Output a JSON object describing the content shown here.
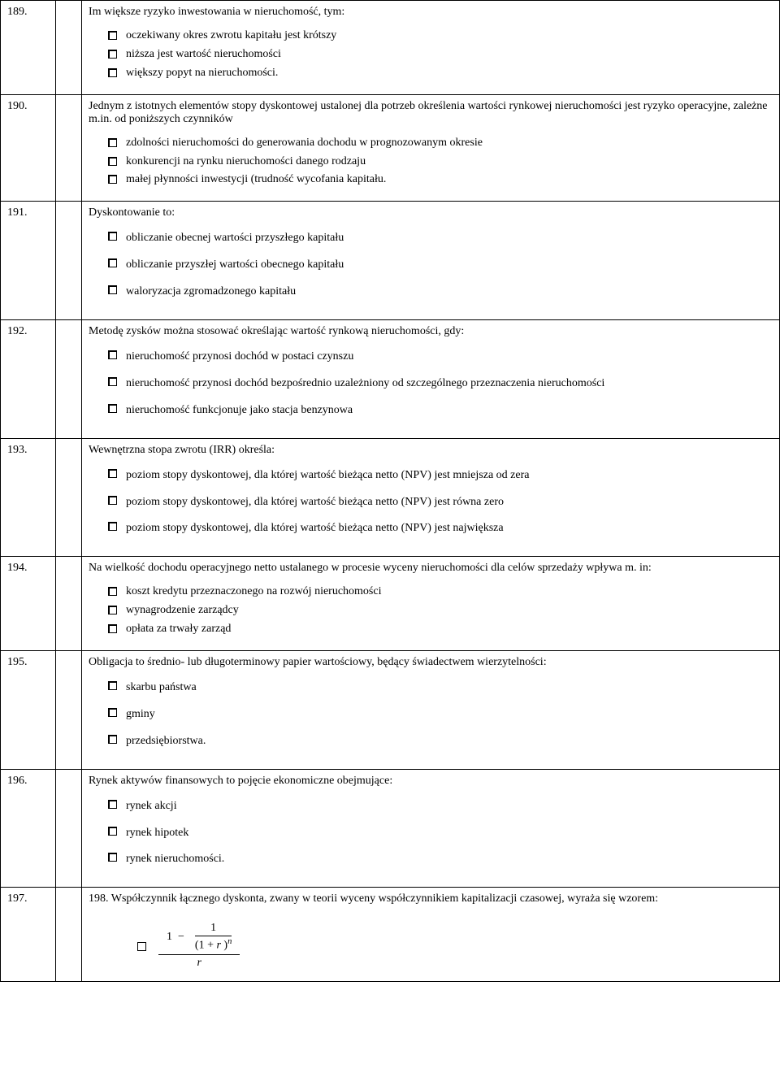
{
  "rows": [
    {
      "num": "189.",
      "text": "Im większe ryzyko inwestowania w nieruchomość, tym:",
      "opts": [
        "oczekiwany okres zwrotu kapitału jest krótszy",
        "niższa jest wartość nieruchomości",
        "większy popyt na nieruchomości."
      ],
      "spaced": false
    },
    {
      "num": "190.",
      "text": "Jednym z istotnych elementów stopy dyskontowej ustalonej dla potrzeb określenia wartości rynkowej nieruchomości jest ryzyko operacyjne, zależne m.in. od poniższych czynników",
      "opts": [
        "zdolności nieruchomości do generowania dochodu w prognozowanym okresie",
        "konkurencji na rynku nieruchomości danego rodzaju",
        "małej płynności inwestycji (trudność wycofania kapitału."
      ],
      "spaced": false
    },
    {
      "num": "191.",
      "text": "Dyskontowanie to:",
      "opts": [
        "obliczanie obecnej wartości przyszłego kapitału",
        "obliczanie przyszłej wartości obecnego kapitału",
        "waloryzacja zgromadzonego kapitału"
      ],
      "spaced": true
    },
    {
      "num": "192.",
      "text": "Metodę zysków można stosować określając wartość rynkową nieruchomości, gdy:",
      "opts": [
        "nieruchomość przynosi dochód w postaci czynszu",
        "nieruchomość przynosi dochód bezpośrednio uzależniony od szczególnego przeznaczenia nieruchomości",
        "nieruchomość funkcjonuje jako stacja benzynowa"
      ],
      "spaced": true
    },
    {
      "num": "193.",
      "text": "Wewnętrzna stopa zwrotu (IRR) określa:",
      "opts": [
        "poziom stopy dyskontowej, dla której wartość bieżąca netto (NPV) jest mniejsza od zera",
        "poziom stopy dyskontowej, dla której wartość bieżąca netto (NPV) jest równa zero",
        "poziom stopy dyskontowej, dla której wartość bieżąca netto (NPV) jest największa"
      ],
      "spaced": true
    },
    {
      "num": "194.",
      "text": "Na wielkość dochodu operacyjnego netto ustalanego w procesie wyceny nieruchomości dla celów sprzedaży wpływa m. in:",
      "opts": [
        "koszt kredytu przeznaczonego na rozwój nieruchomości",
        "wynagrodzenie zarządcy",
        "opłata za trwały zarząd"
      ],
      "spaced": false
    },
    {
      "num": "195.",
      "text": "Obligacja to średnio- lub długoterminowy papier wartościowy, będący świadectwem wierzytelności:",
      "opts": [
        "skarbu państwa",
        "gminy",
        "przedsiębiorstwa."
      ],
      "spaced": true
    },
    {
      "num": "196.",
      "text": "Rynek aktywów finansowych to pojęcie ekonomiczne obejmujące:",
      "opts": [
        "rynek akcji",
        "rynek hipotek",
        "rynek nieruchomości."
      ],
      "spaced": true
    },
    {
      "num": "197.",
      "text": "198. Współczynnik łącznego dyskonta, zwany w teorii wyceny współczynnikiem kapitalizacji czasowej, wyraża się wzorem:",
      "formula": true
    }
  ]
}
